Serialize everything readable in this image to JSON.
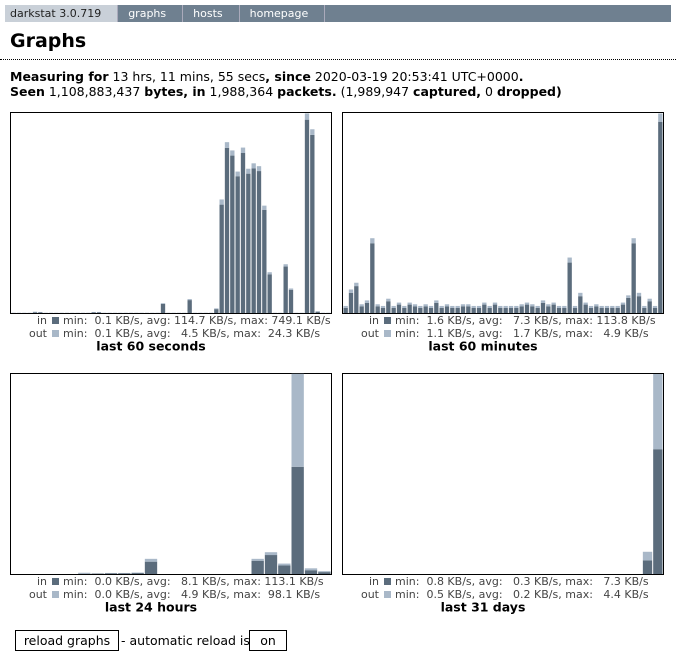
{
  "nav": [
    "darkstat 3.0.719",
    "graphs",
    "hosts",
    "homepage"
  ],
  "header": {
    "title": "Graphs"
  },
  "summary": [
    [
      "Measuring for",
      "13 hrs, 11 mins, 55 secs",
      ", since",
      "2020-03-19 20:53:41 UTC+0000",
      "."
    ],
    [
      "Seen",
      "1,108,883,437",
      "bytes, in",
      "1,988,364",
      "packets.",
      "(1,989,947",
      "captured,",
      "0",
      "dropped)"
    ]
  ],
  "graphs": [
    {
      "type": "bar",
      "title": "last 60 seconds",
      "ylim": [
        0,
        775
      ],
      "series": [
        {
          "name": "in",
          "color": "#5b6c7c",
          "stats": "min:  0.1 KB/s, avg: 114.7 KB/s, max: 749.1 KB/s",
          "values": [
            0,
            0,
            0,
            0,
            3,
            2,
            0,
            0,
            0,
            0,
            0,
            0,
            0,
            0,
            0,
            2,
            2,
            0,
            0,
            0,
            0,
            0,
            0,
            0,
            0,
            0,
            0,
            0,
            35,
            0,
            0,
            0,
            0,
            50,
            0,
            0,
            0,
            0,
            15,
            420,
            640,
            610,
            530,
            620,
            540,
            560,
            550,
            400,
            150,
            0,
            0,
            180,
            90,
            0,
            0,
            749.1,
            690,
            5,
            0,
            0
          ]
        },
        {
          "name": "out",
          "color": "#a9b8c8",
          "stats": "min:  0.1 KB/s, avg:   4.5 KB/s, max:  24.3 KB/s",
          "values": [
            1,
            1,
            1,
            1,
            2,
            2,
            1,
            1,
            1,
            1,
            1,
            1,
            1,
            1,
            1,
            2,
            2,
            1,
            1,
            1,
            1,
            1,
            1,
            1,
            1,
            1,
            1,
            1,
            3,
            1,
            1,
            1,
            1,
            4,
            1,
            1,
            1,
            1,
            3,
            20,
            22,
            20,
            18,
            21,
            19,
            20,
            19,
            16,
            8,
            1,
            1,
            9,
            5,
            1,
            1,
            24.3,
            22,
            2,
            1,
            1
          ]
        }
      ]
    },
    {
      "type": "bar",
      "title": "last 60 minutes",
      "ylim": [
        0,
        119
      ],
      "series": [
        {
          "name": "in",
          "color": "#5b6c7c",
          "stats": "min:  1.6 KB/s, avg:   7.3 KB/s, max: 113.8 KB/s",
          "values": [
            3,
            12,
            16,
            4,
            6,
            41.5,
            4,
            3,
            7,
            3,
            5,
            3,
            5,
            4,
            3,
            4,
            3,
            6,
            3,
            4,
            3,
            3,
            4,
            4,
            3,
            3,
            5,
            3,
            5,
            3,
            3,
            3,
            3,
            4,
            5,
            4,
            3,
            6,
            4,
            5,
            3,
            3,
            30,
            3,
            10,
            5,
            3,
            4,
            3,
            3,
            3,
            3,
            5,
            9,
            41.5,
            10,
            3,
            7,
            3,
            113.8
          ]
        },
        {
          "name": "out",
          "color": "#a9b8c8",
          "stats": "min:  1.1 KB/s, avg:   1.7 KB/s, max:   4.9 KB/s",
          "values": [
            1.2,
            2,
            2,
            1.2,
            1.5,
            3,
            1.2,
            1.2,
            1.5,
            1.2,
            1.2,
            1.2,
            1.2,
            1.2,
            1.2,
            1.2,
            1.2,
            1.5,
            1.2,
            1.2,
            1.2,
            1.2,
            1.2,
            1.2,
            1.2,
            1.2,
            1.2,
            1.2,
            1.2,
            1.2,
            1.2,
            1.2,
            1.2,
            1.2,
            1.2,
            1.2,
            1.2,
            1.5,
            1.2,
            1.2,
            1.2,
            1.2,
            3,
            1.2,
            2,
            1.2,
            1.2,
            1.2,
            1.2,
            1.2,
            1.2,
            1.2,
            1.2,
            1.5,
            3,
            2,
            1.2,
            1.5,
            1.2,
            4.9
          ]
        }
      ]
    },
    {
      "type": "bar",
      "title": "last 24 hours",
      "ylim": [
        0,
        211
      ],
      "series": [
        {
          "name": "in",
          "color": "#5b6c7c",
          "stats": "min:  0.0 KB/s, avg:   8.1 KB/s, max: 113.1 KB/s",
          "values": [
            0,
            0,
            0,
            0,
            0,
            0.3,
            0.5,
            0.8,
            0.8,
            1,
            13,
            0,
            0,
            0,
            0,
            0,
            0,
            0,
            14,
            20,
            9,
            113.1,
            4,
            2
          ]
        },
        {
          "name": "out",
          "color": "#a9b8c8",
          "stats": "min:  0.0 KB/s, avg:   4.9 KB/s, max:  98.1 KB/s",
          "values": [
            0,
            0,
            0,
            0,
            0,
            1,
            0,
            0.3,
            0.3,
            0.5,
            3,
            0,
            0,
            0,
            0,
            0,
            0,
            0,
            2,
            3,
            2,
            98.1,
            2,
            1
          ]
        }
      ]
    },
    {
      "type": "bar",
      "title": "last 31 days",
      "ylim": [
        0,
        11.7
      ],
      "series": [
        {
          "name": "in",
          "color": "#5b6c7c",
          "stats": "min:  0.8 KB/s, avg:   0.3 KB/s, max:   7.3 KB/s",
          "values": [
            0,
            0,
            0,
            0,
            0,
            0,
            0,
            0,
            0,
            0,
            0,
            0,
            0,
            0,
            0,
            0,
            0,
            0,
            0,
            0,
            0,
            0,
            0,
            0,
            0,
            0,
            0,
            0,
            0,
            0.8,
            7.3
          ]
        },
        {
          "name": "out",
          "color": "#a9b8c8",
          "stats": "min:  0.5 KB/s, avg:   0.2 KB/s, max:   4.4 KB/s",
          "values": [
            0,
            0,
            0,
            0,
            0,
            0,
            0,
            0,
            0,
            0,
            0,
            0,
            0,
            0,
            0,
            0,
            0,
            0,
            0,
            0,
            0,
            0,
            0,
            0,
            0,
            0,
            0,
            0,
            0,
            0.5,
            4.4
          ]
        }
      ]
    }
  ],
  "controls": {
    "reload": "reload graphs",
    "auto": "- automatic reload is:",
    "state": "on"
  }
}
